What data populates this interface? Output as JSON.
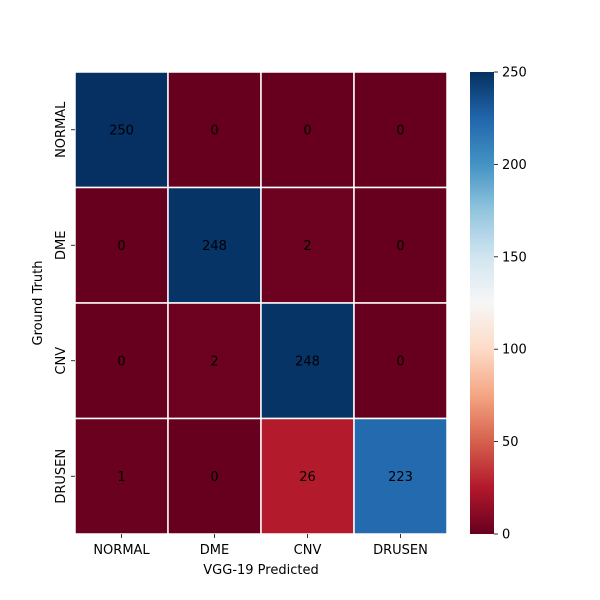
{
  "chart_data": {
    "type": "heatmap",
    "title": "",
    "xlabel": "VGG-19 Predicted",
    "ylabel": "Ground Truth",
    "x_categories": [
      "NORMAL",
      "DME",
      "CNV",
      "DRUSEN"
    ],
    "y_categories": [
      "NORMAL",
      "DME",
      "CNV",
      "DRUSEN"
    ],
    "values": [
      [
        250,
        0,
        0,
        0
      ],
      [
        0,
        248,
        2,
        0
      ],
      [
        0,
        2,
        248,
        0
      ],
      [
        1,
        0,
        26,
        223
      ]
    ],
    "colorbar": {
      "min": 0,
      "max": 250,
      "ticks": [
        0,
        50,
        100,
        150,
        200,
        250
      ],
      "colormap": "RdBu",
      "colors": [
        "#67001f",
        "#b2182b",
        "#d6604d",
        "#f4a582",
        "#fddbc7",
        "#f7f7f7",
        "#d1e5f0",
        "#92c5de",
        "#4393c3",
        "#2166ac",
        "#053061"
      ]
    },
    "cell_border_color": "#ffffff",
    "light_text_color": "#ffffff",
    "dark_text_color": "#262626"
  }
}
